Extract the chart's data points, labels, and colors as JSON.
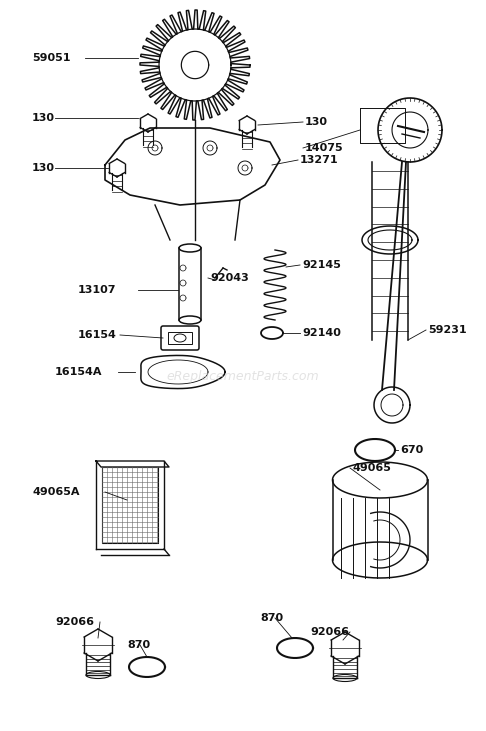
{
  "bg_color": "#ffffff",
  "watermark": "eReplacementParts.com",
  "watermark_color": "#cccccc",
  "watermark_alpha": 0.55,
  "watermark_fontsize": 9
}
